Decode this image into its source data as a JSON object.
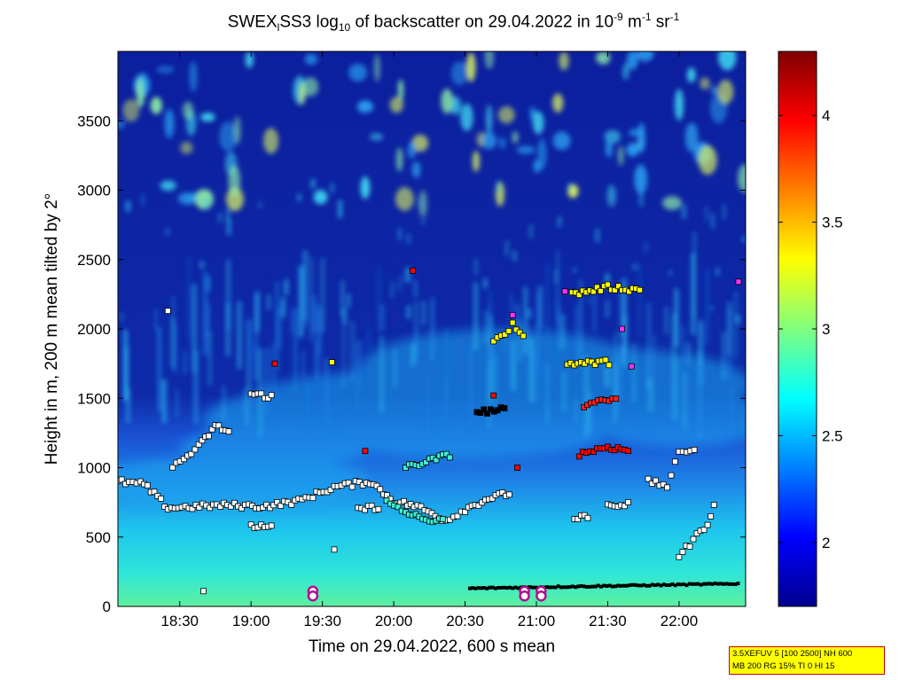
{
  "title": {
    "prefix": "SWEX",
    "sub1": "l",
    "mid1": "SS3 log",
    "sub2": "10",
    "mid2": " of backscatter on 29.04.2022 in 10",
    "sup1": "-9",
    "mid3": " m",
    "sup2": "-1",
    "mid4": " sr",
    "sup3": "-1"
  },
  "info_box": {
    "line1": "3.5XEFUV 5 [100 2500] NH 600",
    "line2": "MB 200 RG 15% TI 0 HI 15"
  },
  "chart_data": {
    "type": "heatmap",
    "xlabel": "Time on 29.04.2022, 600 s mean",
    "ylabel": "Height in m, 200 m mean tilted by 2°",
    "x_tick_labels": [
      "18:30",
      "19:00",
      "19:30",
      "20:00",
      "20:30",
      "21:00",
      "21:30",
      "22:00"
    ],
    "x_tick_minutes": [
      1110,
      1140,
      1170,
      1200,
      1230,
      1260,
      1290,
      1320
    ],
    "xlim_minutes": [
      1084,
      1348
    ],
    "ylim": [
      0,
      4000
    ],
    "y_ticks": [
      0,
      500,
      1000,
      1500,
      2000,
      2500,
      3000,
      3500
    ],
    "colorbar": {
      "range": [
        1.7,
        4.3
      ],
      "ticks": [
        2,
        2.5,
        3,
        3.5,
        4
      ],
      "colormap": "jet"
    },
    "colors": {
      "background": "#0a1e9c",
      "marker_edge": "#000000"
    }
  }
}
